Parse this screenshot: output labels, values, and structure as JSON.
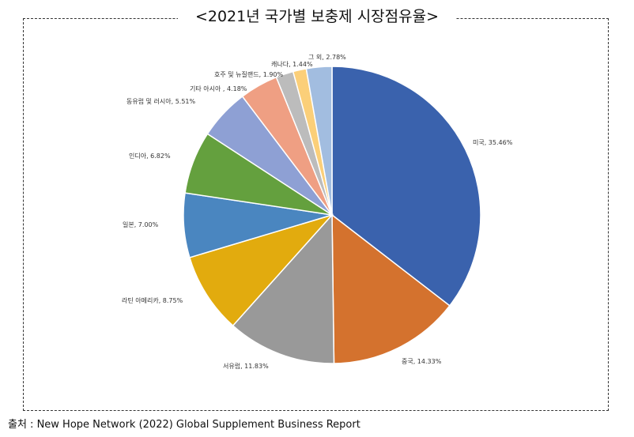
{
  "chart_data": {
    "type": "pie",
    "title": "<2021년 국가별 보충제 시장점유율>",
    "start": "top",
    "direction": "clockwise",
    "legend": "none",
    "slices": [
      {
        "label": "미국",
        "value": 35.46,
        "text": "미국, 35.46%",
        "color": "#3a62ad"
      },
      {
        "label": "중국",
        "value": 14.33,
        "text": "중국, 14.33%",
        "color": "#d4722e"
      },
      {
        "label": "서유럽",
        "value": 11.83,
        "text": "서유럽, 11.83%",
        "color": "#999999"
      },
      {
        "label": "라틴 아메리카",
        "value": 8.75,
        "text": "라틴 아메리카, 8.75%",
        "color": "#e2ab0e"
      },
      {
        "label": "일본",
        "value": 7.0,
        "text": "일본, 7.00%",
        "color": "#4a86c0"
      },
      {
        "label": "인디아",
        "value": 6.82,
        "text": "인디아, 6.82%",
        "color": "#64a03e"
      },
      {
        "label": "동유럽 및 러시아",
        "value": 5.51,
        "text": "동유럽 및 러시아, 5.51%",
        "color": "#8ea0d4"
      },
      {
        "label": "기타 아시아",
        "value": 4.18,
        "text": "기타 아시아 , 4.18%",
        "color": "#ef9f83"
      },
      {
        "label": "호주 및 뉴질랜드",
        "value": 1.9,
        "text": "호주 및 뉴질랜드, 1.90%",
        "color": "#bcbcbc"
      },
      {
        "label": "캐나다",
        "value": 1.44,
        "text": "캐나다, 1.44%",
        "color": "#fbcf79"
      },
      {
        "label": "그 외",
        "value": 2.78,
        "text": "그 외, 2.78%",
        "color": "#a2bde0"
      }
    ]
  },
  "source": "출처 : New Hope Network (2022) Global Supplement Business Report"
}
